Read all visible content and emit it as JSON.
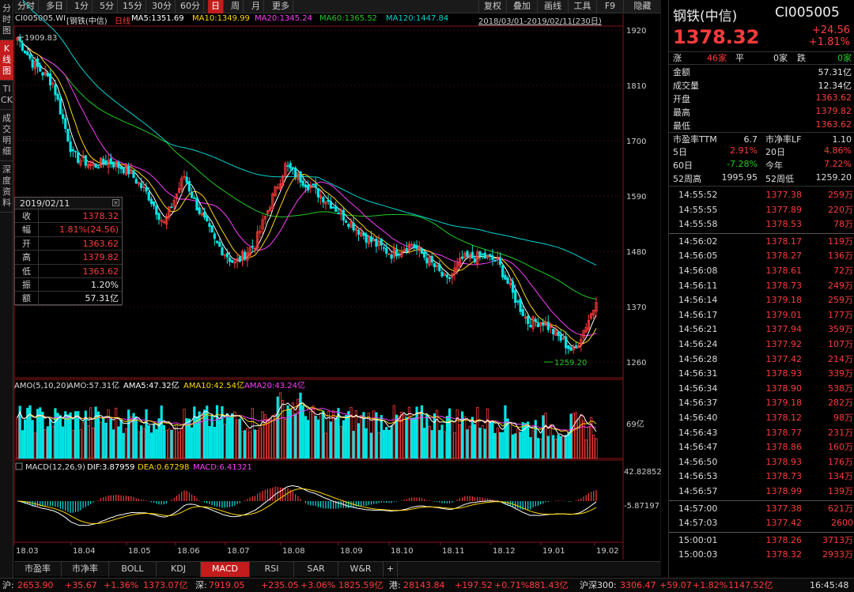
{
  "left_tabs": [
    "分时图",
    "K线图",
    "TICK",
    "成交明细",
    "深度资料"
  ],
  "toolbar": {
    "periods": [
      "分时",
      "多日",
      "1分",
      "5分",
      "15分",
      "30分",
      "60分",
      "日",
      "周",
      "月",
      "更多"
    ],
    "active_period": "日",
    "right_buttons": [
      "复权",
      "叠加",
      "画线",
      "工具",
      "F9",
      "隐藏"
    ]
  },
  "info_line": {
    "code": "CI005005.WI",
    "name": "[钢铁(中信)",
    "kline_type": "日线",
    "ma5": "MA5:1351.69",
    "ma10": "MA10:1349.99",
    "ma20": "MA20:1345.24",
    "ma60": "MA60:1365.52",
    "ma120": "MA120:1447.84",
    "date_range": "2018/03/01-2019/02/11(230日)"
  },
  "price_axis": [
    "1920",
    "1810",
    "1700",
    "1590",
    "1480",
    "1370",
    "1260"
  ],
  "annotations": {
    "high": "1909.83",
    "low": "1259.20"
  },
  "volume_panel": {
    "title": "AMO(5,10,20)",
    "amo": "AMO:57.31亿",
    "ama5": "AMA5:47.32亿",
    "ama10": "AMA10:42.54亿",
    "ama20": "AMA20:43.24亿",
    "axis_label": "69亿"
  },
  "macd_panel": {
    "title": "MACD(12,26,9)",
    "dif": "DIF:3.87959",
    "dea": "DEA:0.67298",
    "macd": "MACD:6.41321",
    "axis_top": "42.82852",
    "axis_mid": "-5.87197"
  },
  "x_axis": [
    "18.03",
    "18.04",
    "18.05",
    "18.06",
    "18.07",
    "18.08",
    "18.09",
    "18.10",
    "18.11",
    "18.12",
    "19.01",
    "19.02"
  ],
  "popup": {
    "date": "2019/02/11",
    "rows": [
      {
        "label": "收",
        "value": "1378.32",
        "color": "red"
      },
      {
        "label": "幅",
        "value": "1.81%(24.56)",
        "color": "red"
      },
      {
        "label": "开",
        "value": "1363.62",
        "color": "red"
      },
      {
        "label": "高",
        "value": "1379.82",
        "color": "red"
      },
      {
        "label": "低",
        "value": "1363.62",
        "color": "red"
      },
      {
        "label": "振",
        "value": "1.20%",
        "color": "white"
      },
      {
        "label": "额",
        "value": "57.31亿",
        "color": "white"
      }
    ]
  },
  "quote": {
    "name": "钢铁(中信)",
    "code": "CI005005",
    "price": "1378.32",
    "change": "+24.56",
    "change_pct": "+1.81%",
    "up_label": "涨",
    "up_count": "46家",
    "flat_label": "平",
    "flat_count": "0家",
    "down_label": "跌",
    "down_count": "0家",
    "stats": [
      {
        "label": "金额",
        "value": "57.31亿",
        "color": "white"
      },
      {
        "label": "成交量",
        "value": "12.34亿",
        "color": "white"
      },
      {
        "label": "开盘",
        "value": "1363.62",
        "color": "red"
      },
      {
        "label": "最高",
        "value": "1379.82",
        "color": "red"
      },
      {
        "label": "最低",
        "value": "1363.62",
        "color": "red"
      }
    ],
    "pe_label": "市盈率TTM",
    "pe_value": "6.7",
    "pb_label": "市净率LF",
    "pb_value": "1.10",
    "d5_label": "5日",
    "d5_value": "2.91%",
    "d20_label": "20日",
    "d20_value": "4.86%",
    "d60_label": "60日",
    "d60_value": "-7.28%",
    "ytd_label": "今年",
    "ytd_value": "7.22%",
    "w52h_label": "52周高",
    "w52h_value": "1995.95",
    "w52l_label": "52周低",
    "w52l_value": "1259.20"
  },
  "ticks": [
    {
      "time": "14:55:52",
      "price": "1377.38",
      "vol": "259万"
    },
    {
      "time": "14:55:55",
      "price": "1377.89",
      "vol": "220万"
    },
    {
      "time": "14:55:58",
      "price": "1378.53",
      "vol": "78万"
    },
    {
      "time": "14:56:02",
      "price": "1378.17",
      "vol": "119万"
    },
    {
      "time": "14:56:05",
      "price": "1378.27",
      "vol": "136万"
    },
    {
      "time": "14:56:08",
      "price": "1378.61",
      "vol": "72万"
    },
    {
      "time": "14:56:11",
      "price": "1378.73",
      "vol": "249万"
    },
    {
      "time": "14:56:14",
      "price": "1379.18",
      "vol": "259万"
    },
    {
      "time": "14:56:17",
      "price": "1379.01",
      "vol": "177万"
    },
    {
      "time": "14:56:21",
      "price": "1377.94",
      "vol": "359万"
    },
    {
      "time": "14:56:24",
      "price": "1377.92",
      "vol": "107万"
    },
    {
      "time": "14:56:28",
      "price": "1377.42",
      "vol": "214万"
    },
    {
      "time": "14:56:31",
      "price": "1378.93",
      "vol": "339万"
    },
    {
      "time": "14:56:34",
      "price": "1378.90",
      "vol": "538万"
    },
    {
      "time": "14:56:37",
      "price": "1379.18",
      "vol": "282万"
    },
    {
      "time": "14:56:40",
      "price": "1378.12",
      "vol": "98万"
    },
    {
      "time": "14:56:43",
      "price": "1378.77",
      "vol": "231万"
    },
    {
      "time": "14:56:47",
      "price": "1378.86",
      "vol": "160万"
    },
    {
      "time": "14:56:50",
      "price": "1378.93",
      "vol": "176万"
    },
    {
      "time": "14:56:53",
      "price": "1378.73",
      "vol": "134万"
    },
    {
      "time": "14:56:57",
      "price": "1378.99",
      "vol": "139万"
    },
    {
      "time": "14:57:00",
      "price": "1377.38",
      "vol": "621万"
    },
    {
      "time": "14:57:03",
      "price": "1377.42",
      "vol": "2600"
    },
    {
      "time": "15:00:01",
      "price": "1378.26",
      "vol": "3713万"
    },
    {
      "time": "15:00:03",
      "price": "1378.32",
      "vol": "2933万"
    }
  ],
  "bottom_tabs": [
    "市盈率",
    "市净率",
    "BOLL",
    "KDJ",
    "MACD",
    "RSI",
    "SAR",
    "W&R",
    "+"
  ],
  "active_bottom_tab": "MACD",
  "status_bar": {
    "sh_label": "沪:",
    "sh_value": "2653.90",
    "sh_change": "+35.67",
    "sh_pct": "+1.36%",
    "sh_amount": "1373.07亿",
    "sz_label": "深:",
    "sz_value": "7919.05",
    "sz_change": "+235.05",
    "sz_pct": "+3.06%",
    "sz_amount": "1825.59亿",
    "hk_label": "港:",
    "hk_value": "28143.84",
    "hk_change": "+197.52",
    "hk_pct": "+0.71%",
    "hk_amount": "881.43亿",
    "hs300_label": "沪深300:",
    "hs300_value": "3306.47",
    "hs300_change": "+59.07",
    "hs300_pct": "+1.82%",
    "hs300_amount": "1147.52亿",
    "clock": "16:45:48"
  },
  "colors": {
    "up": "#ff3b3b",
    "down": "#00e5e5",
    "ma5": "#ffffff",
    "ma10": "#ffd700",
    "ma20": "#ff3cff",
    "ma60": "#22cc22",
    "ma120": "#00d4d4",
    "accent": "#c31c1c"
  }
}
